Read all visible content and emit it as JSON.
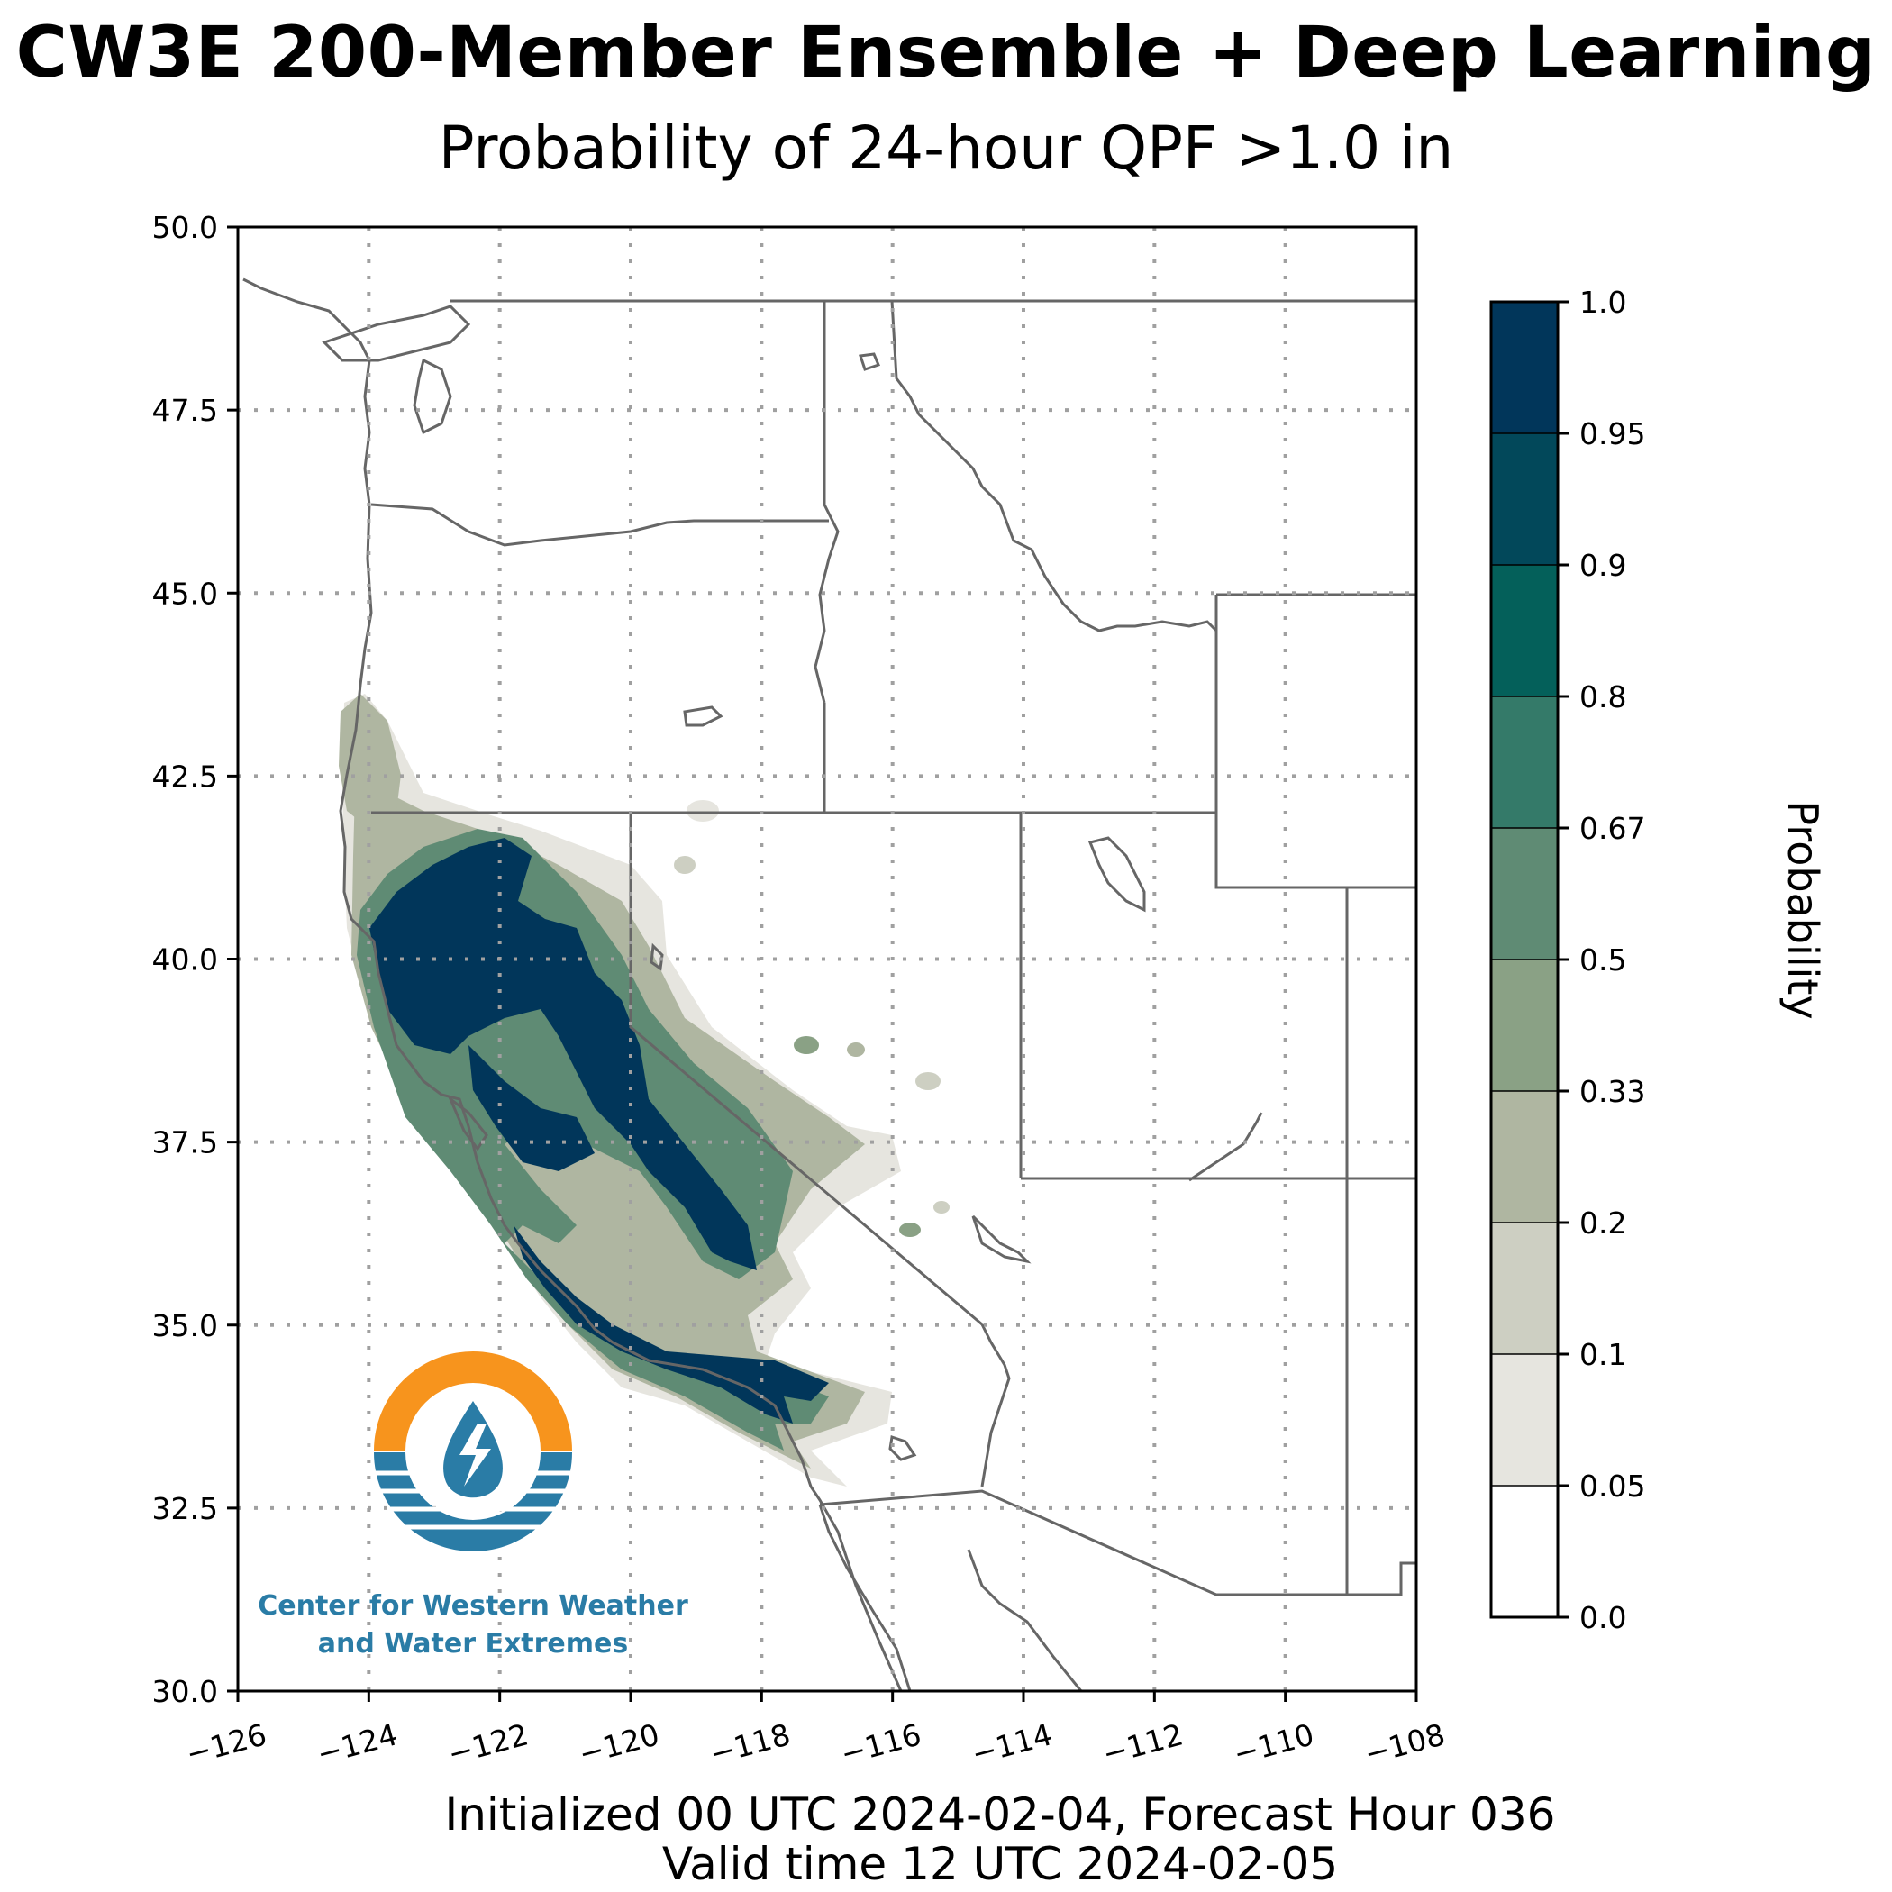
{
  "header": {
    "title": "CW3E 200-Member Ensemble + Deep Learning",
    "subtitle": "Probability of 24-hour QPF >1.0 in"
  },
  "footer": {
    "line1": "Initialized 00 UTC 2024-02-04, Forecast Hour 036",
    "line2": "Valid time 12 UTC 2024-02-05"
  },
  "map": {
    "lon_range": [
      -126,
      -108
    ],
    "lat_range": [
      30,
      50
    ],
    "lon_ticks": [
      "−126",
      "−124",
      "−122",
      "−120",
      "−118",
      "−116",
      "−114",
      "−112",
      "−110",
      "−108"
    ],
    "lat_ticks": [
      "30.0",
      "32.5",
      "35.0",
      "37.5",
      "40.0",
      "42.5",
      "45.0",
      "47.5",
      "50.0"
    ],
    "gridline_style": "dotted gray",
    "colors": {
      "border": "#666666",
      "grid": "#a0a0a0"
    }
  },
  "colorbar": {
    "label": "Probability",
    "ticks": [
      "0.0",
      "0.05",
      "0.1",
      "0.2",
      "0.33",
      "0.5",
      "0.67",
      "0.8",
      "0.9",
      "0.95",
      "1.0"
    ],
    "colors": [
      "#ffffff",
      "#e6e5df",
      "#cdcfc2",
      "#afb6a1",
      "#8aa185",
      "#5f8b74",
      "#347a69",
      "#04605a",
      "#02485a",
      "#01365a"
    ]
  },
  "logo": {
    "text_line1": "Center for Western Weather",
    "text_line2": "and Water Extremes",
    "orange": "#f7941d",
    "blue": "#2a7ca6"
  }
}
